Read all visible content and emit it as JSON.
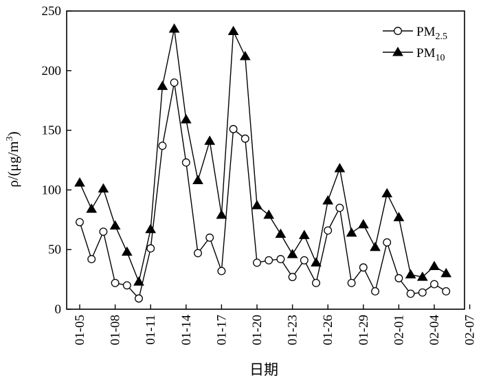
{
  "chart_data": {
    "type": "line",
    "xlabel": "日期",
    "ylabel_prefix": "ρ/(μg/m",
    "ylabel_sup": "3",
    "ylabel_suffix": ")",
    "ylim": [
      0,
      250
    ],
    "yticks": [
      0,
      50,
      100,
      150,
      200,
      250
    ],
    "xtick_labels": [
      "01-05",
      "01-08",
      "01-11",
      "01-14",
      "01-17",
      "01-20",
      "01-23",
      "01-26",
      "01-29",
      "02-01",
      "02-04",
      "02-07"
    ],
    "x": [
      "01-05",
      "01-06",
      "01-07",
      "01-08",
      "01-09",
      "01-10",
      "01-11",
      "01-12",
      "01-13",
      "01-14",
      "01-15",
      "01-16",
      "01-17",
      "01-18",
      "01-19",
      "01-20",
      "01-21",
      "01-22",
      "01-23",
      "01-24",
      "01-25",
      "01-26",
      "01-27",
      "01-28",
      "01-29",
      "01-30",
      "01-31",
      "02-01",
      "02-02",
      "02-03",
      "02-04",
      "02-05"
    ],
    "grid": false,
    "legend_position": "top-right",
    "series": [
      {
        "name": "PM2.5",
        "name_main": "PM",
        "name_sub": "2.5",
        "marker": "circle",
        "values": [
          73,
          42,
          65,
          22,
          20,
          9,
          51,
          137,
          190,
          123,
          47,
          60,
          32,
          151,
          143,
          39,
          41,
          42,
          27,
          41,
          22,
          66,
          85,
          22,
          35,
          15,
          56,
          26,
          13,
          14,
          21,
          15
        ]
      },
      {
        "name": "PM10",
        "name_main": "PM",
        "name_sub": "10",
        "marker": "triangle",
        "values": [
          106,
          84,
          101,
          70,
          48,
          23,
          67,
          187,
          235,
          159,
          108,
          141,
          79,
          233,
          212,
          87,
          79,
          63,
          46,
          62,
          39,
          91,
          118,
          64,
          71,
          52,
          97,
          77,
          29,
          27,
          36,
          30
        ]
      }
    ]
  }
}
